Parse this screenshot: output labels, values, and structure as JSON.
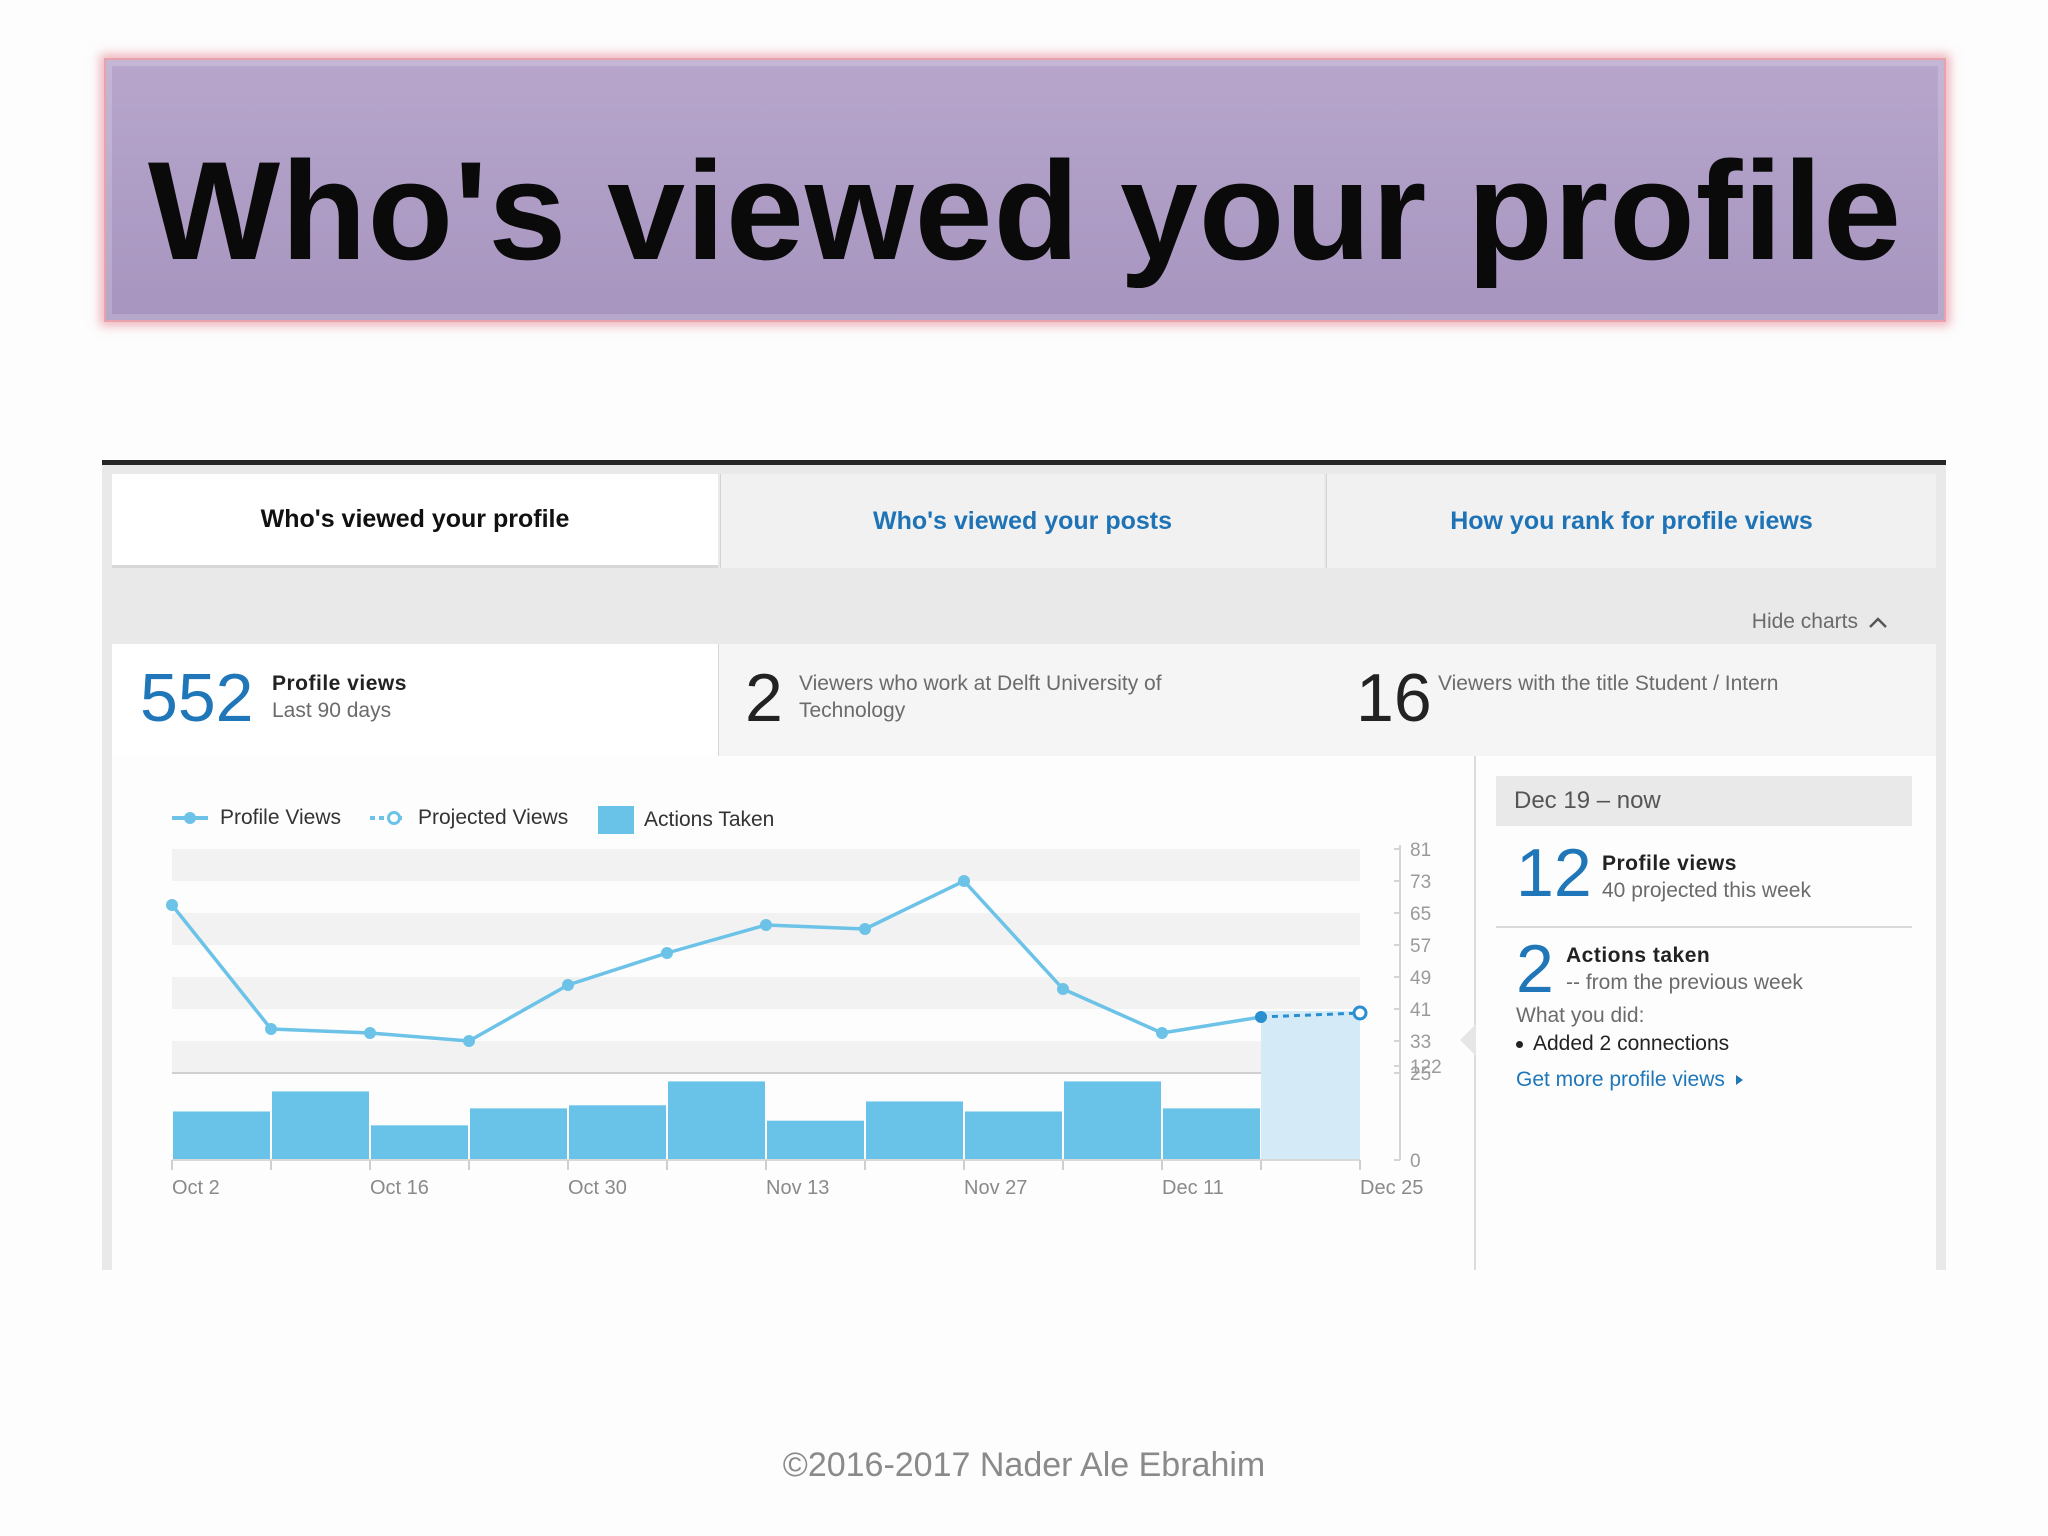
{
  "slide": {
    "title": "Who's viewed your profile",
    "footer": "©2016-2017  Nader Ale Ebrahim"
  },
  "tabs": [
    {
      "label": "Who's viewed your profile",
      "active": true
    },
    {
      "label": "Who's viewed your posts",
      "active": false
    },
    {
      "label": "How you rank for profile views",
      "active": false
    }
  ],
  "hide_charts_label": "Hide charts",
  "stats": [
    {
      "number": "552",
      "title": "Profile views",
      "subtitle": "Last 90 days",
      "number_color": "#1f76b8"
    },
    {
      "number": "2",
      "text_line1": "Viewers who work at Delft University of",
      "text_line2": "Technology",
      "number_color": "#222222"
    },
    {
      "number": "16",
      "text_line1": "Viewers with the title Student / Intern",
      "number_color": "#222222"
    }
  ],
  "legend": {
    "profile_views": "Profile Views",
    "projected_views": "Projected Views",
    "actions_taken": "Actions Taken"
  },
  "colors": {
    "line": "#6cc3e7",
    "bar": "#69c3e8",
    "projection_bg": "#d5eaf7",
    "link": "#1f76b8"
  },
  "chart_data": {
    "type": "line",
    "x_labels": [
      "Oct 2",
      "Oct 16",
      "Oct 30",
      "Nov 13",
      "Nov 27",
      "Dec 11",
      "Dec 25"
    ],
    "views": {
      "name": "Profile Views",
      "x": [
        "Oct 2",
        "Oct 9",
        "Oct 16",
        "Oct 23",
        "Oct 30",
        "Nov 6",
        "Nov 13",
        "Nov 20",
        "Nov 27",
        "Dec 4",
        "Dec 11",
        "Dec 18"
      ],
      "values": [
        67,
        36,
        35,
        33,
        47,
        55,
        62,
        61,
        73,
        46,
        35,
        39
      ]
    },
    "projected": {
      "name": "Projected Views",
      "x": [
        "Dec 18",
        "Dec 25"
      ],
      "values": [
        39,
        40
      ]
    },
    "actions": {
      "name": "Actions Taken",
      "x": [
        "Oct 2",
        "Oct 9",
        "Oct 16",
        "Oct 23",
        "Oct 30",
        "Nov 6",
        "Nov 13",
        "Nov 20",
        "Nov 27",
        "Dec 4",
        "Dec 11"
      ],
      "values": [
        63,
        89,
        45,
        67,
        71,
        102,
        51,
        76,
        63,
        102,
        67
      ]
    },
    "y_ticks_views": [
      81,
      73,
      65,
      57,
      49,
      41,
      33,
      25
    ],
    "y_range_views": [
      25,
      81
    ],
    "y_ticks_actions": [
      122,
      0
    ],
    "y_range_actions": [
      0,
      122
    ]
  },
  "week": {
    "header": "Dec 19 – now",
    "views_number": "12",
    "views_title": "Profile views",
    "views_sub": "40 projected this week",
    "actions_number": "2",
    "actions_title": "Actions taken",
    "actions_sub": "-- from the previous week",
    "what_you_did": "What you did:",
    "did_item": "Added 2 connections",
    "more_link": "Get more profile views"
  }
}
